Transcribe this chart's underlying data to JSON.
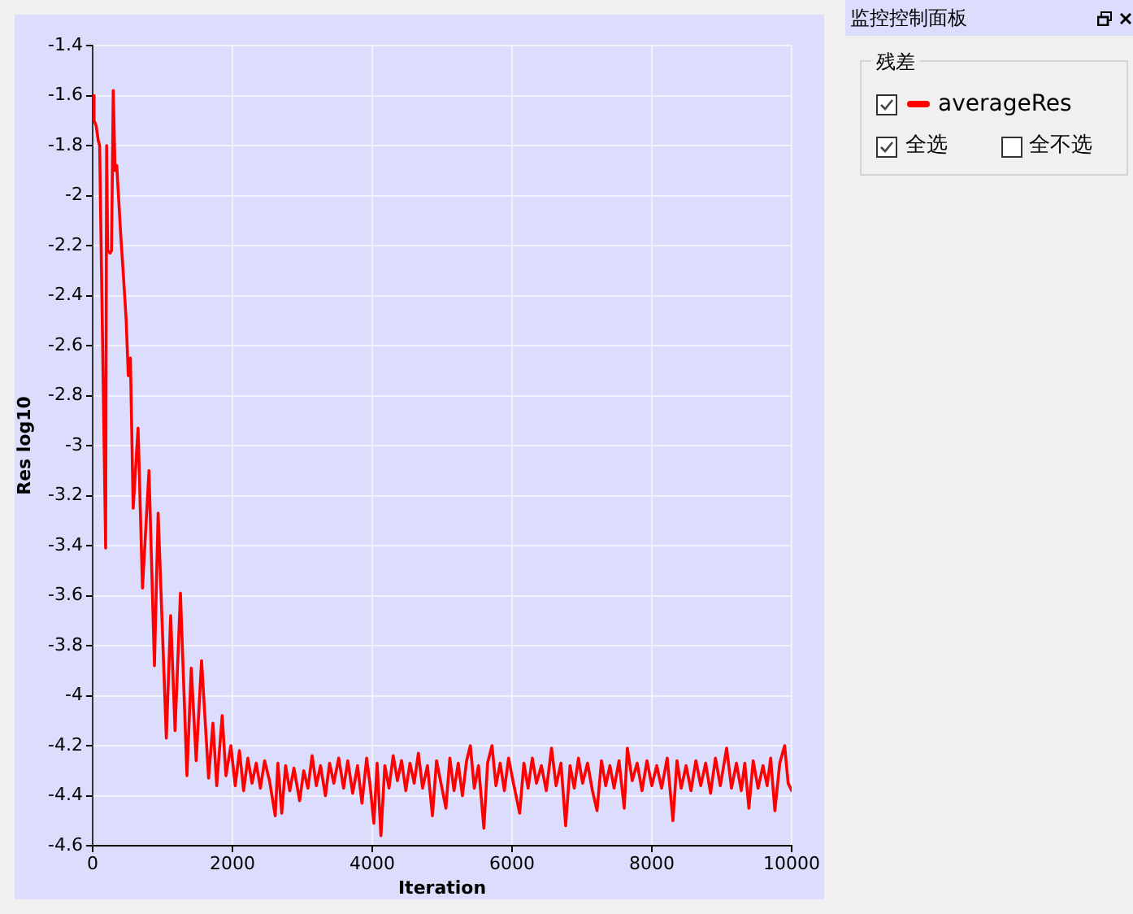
{
  "chart_data": {
    "type": "line",
    "xlabel": "Iteration",
    "ylabel": "Res log10",
    "legend_title": "残差",
    "legend": "right",
    "grid": true,
    "annotations": [
      "监控控制面板",
      "全选",
      "全不选"
    ],
    "xlim": [
      0,
      10000
    ],
    "xticks": [
      0,
      2000,
      4000,
      6000,
      8000,
      10000
    ],
    "ylim": [
      -4.6,
      -1.4
    ],
    "yticks": [
      -1.4,
      -1.6,
      -1.8,
      -2,
      -2.2,
      -2.4,
      -2.6,
      -2.8,
      -3,
      -3.2,
      -3.4,
      -3.6,
      -3.8,
      -4,
      -4.2,
      -4.4,
      -4.6
    ],
    "series": [
      {
        "name": "averageRes",
        "color": "#ff0000",
        "x": [
          0,
          20,
          50,
          80,
          100,
          186,
          200,
          215,
          250,
          270,
          295,
          320,
          345,
          400,
          440,
          480,
          510,
          540,
          580,
          650,
          713,
          806,
          884,
          937,
          1054,
          1116,
          1179,
          1256,
          1349,
          1411,
          1481,
          1558,
          1659,
          1721,
          1775,
          1853,
          1907,
          1977,
          2040,
          2100,
          2160,
          2220,
          2280,
          2340,
          2400,
          2460,
          2530,
          2612,
          2650,
          2705,
          2760,
          2820,
          2880,
          2961,
          3020,
          3080,
          3140,
          3200,
          3260,
          3330,
          3390,
          3450,
          3520,
          3590,
          3650,
          3720,
          3790,
          3853,
          3920,
          3970,
          4023,
          4070,
          4124,
          4180,
          4240,
          4300,
          4360,
          4420,
          4480,
          4540,
          4600,
          4660,
          4720,
          4790,
          4861,
          4920,
          4990,
          5054,
          5110,
          5170,
          5230,
          5290,
          5350,
          5403,
          5460,
          5520,
          5597,
          5650,
          5713,
          5770,
          5830,
          5890,
          5950,
          6020,
          6109,
          6170,
          6230,
          6290,
          6350,
          6420,
          6490,
          6565,
          6630,
          6700,
          6767,
          6830,
          6890,
          6950,
          7010,
          7080,
          7150,
          7216,
          7280,
          7340,
          7400,
          7460,
          7530,
          7605,
          7650,
          7720,
          7790,
          7860,
          7930,
          8000,
          8070,
          8140,
          8220,
          8302,
          8360,
          8420,
          8490,
          8560,
          8630,
          8700,
          8770,
          8840,
          8910,
          8980,
          9070,
          9140,
          9210,
          9280,
          9330,
          9388,
          9450,
          9520,
          9590,
          9650,
          9700,
          9760,
          9830,
          9900,
          9950,
          10000
        ],
        "values": [
          -1.6,
          -1.7,
          -1.72,
          -1.78,
          -1.8,
          -3.41,
          -1.8,
          -2.22,
          -2.23,
          -2.22,
          -1.58,
          -1.9,
          -1.88,
          -2.15,
          -2.32,
          -2.5,
          -2.72,
          -2.65,
          -3.25,
          -2.93,
          -3.57,
          -3.1,
          -3.88,
          -3.27,
          -4.17,
          -3.68,
          -4.14,
          -3.59,
          -4.32,
          -3.89,
          -4.26,
          -3.86,
          -4.33,
          -4.11,
          -4.36,
          -4.08,
          -4.32,
          -4.2,
          -4.36,
          -4.22,
          -4.38,
          -4.25,
          -4.35,
          -4.27,
          -4.37,
          -4.26,
          -4.34,
          -4.48,
          -4.27,
          -4.47,
          -4.28,
          -4.38,
          -4.29,
          -4.42,
          -4.3,
          -4.37,
          -4.24,
          -4.36,
          -4.28,
          -4.4,
          -4.27,
          -4.35,
          -4.25,
          -4.37,
          -4.26,
          -4.39,
          -4.28,
          -4.43,
          -4.25,
          -4.36,
          -4.51,
          -4.27,
          -4.56,
          -4.28,
          -4.37,
          -4.24,
          -4.34,
          -4.26,
          -4.38,
          -4.27,
          -4.35,
          -4.23,
          -4.37,
          -4.28,
          -4.48,
          -4.26,
          -4.36,
          -4.45,
          -4.25,
          -4.38,
          -4.27,
          -4.4,
          -4.26,
          -4.2,
          -4.37,
          -4.28,
          -4.53,
          -4.27,
          -4.2,
          -4.36,
          -4.27,
          -4.38,
          -4.25,
          -4.35,
          -4.47,
          -4.27,
          -4.37,
          -4.25,
          -4.35,
          -4.28,
          -4.38,
          -4.21,
          -4.36,
          -4.27,
          -4.52,
          -4.28,
          -4.37,
          -4.25,
          -4.35,
          -4.27,
          -4.38,
          -4.46,
          -4.26,
          -4.36,
          -4.28,
          -4.37,
          -4.26,
          -4.45,
          -4.21,
          -4.34,
          -4.27,
          -4.38,
          -4.26,
          -4.36,
          -4.28,
          -4.37,
          -4.25,
          -4.5,
          -4.26,
          -4.37,
          -4.28,
          -4.38,
          -4.26,
          -4.36,
          -4.27,
          -4.39,
          -4.25,
          -4.36,
          -4.21,
          -4.37,
          -4.27,
          -4.38,
          -4.27,
          -4.45,
          -4.26,
          -4.37,
          -4.28,
          -4.36,
          -4.25,
          -4.46,
          -4.27,
          -4.2,
          -4.35,
          -4.38
        ]
      }
    ]
  }
}
